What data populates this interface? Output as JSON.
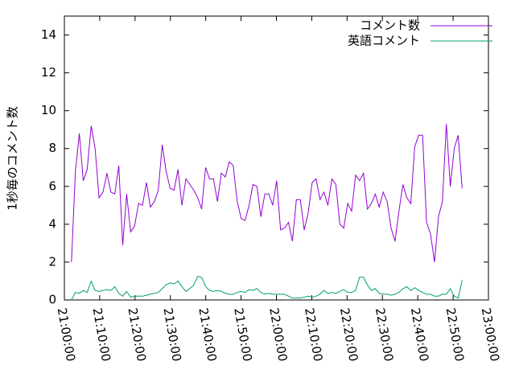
{
  "chart_data": {
    "type": "line",
    "y_label": "1秒毎のコメント数",
    "x": [
      "21:02:00",
      "21:03:07",
      "21:04:14",
      "21:05:21",
      "21:06:28",
      "21:07:35",
      "21:08:42",
      "21:09:49",
      "21:10:56",
      "21:12:03",
      "21:13:10",
      "21:14:17",
      "21:15:24",
      "21:16:31",
      "21:17:38",
      "21:18:45",
      "21:19:52",
      "21:20:59",
      "21:22:06",
      "21:23:13",
      "21:24:20",
      "21:25:27",
      "21:26:34",
      "21:27:41",
      "21:28:48",
      "21:29:55",
      "21:31:02",
      "21:32:09",
      "21:33:16",
      "21:34:23",
      "21:35:30",
      "21:36:37",
      "21:37:44",
      "21:38:51",
      "21:39:58",
      "21:41:05",
      "21:42:12",
      "21:43:19",
      "21:44:26",
      "21:45:33",
      "21:46:40",
      "21:47:47",
      "21:48:54",
      "21:50:01",
      "21:51:08",
      "21:52:15",
      "21:53:22",
      "21:54:29",
      "21:55:36",
      "21:56:43",
      "21:57:50",
      "21:58:57",
      "22:00:04",
      "22:01:11",
      "22:02:18",
      "22:03:25",
      "22:04:32",
      "22:05:39",
      "22:06:46",
      "22:07:53",
      "22:09:00",
      "22:10:07",
      "22:11:14",
      "22:12:21",
      "22:13:28",
      "22:14:35",
      "22:15:42",
      "22:16:49",
      "22:17:56",
      "22:19:03",
      "22:20:10",
      "22:21:17",
      "22:22:24",
      "22:23:31",
      "22:24:38",
      "22:25:45",
      "22:26:52",
      "22:27:59",
      "22:29:06",
      "22:30:13",
      "22:31:20",
      "22:32:27",
      "22:33:34",
      "22:34:41",
      "22:35:48",
      "22:36:55",
      "22:38:02",
      "22:39:09",
      "22:40:16",
      "22:41:23",
      "22:42:30",
      "22:43:37",
      "22:44:44",
      "22:45:51",
      "22:46:58",
      "22:48:05",
      "22:49:12",
      "22:50:19",
      "22:51:26",
      "22:52:33"
    ],
    "series": [
      {
        "name": "コメント数",
        "color": "#9400d3",
        "values": [
          2.0,
          6.8,
          8.8,
          6.3,
          6.9,
          9.2,
          8.0,
          5.4,
          5.7,
          6.7,
          5.7,
          5.6,
          7.1,
          2.9,
          5.6,
          3.6,
          3.9,
          5.1,
          5.0,
          6.2,
          4.9,
          5.2,
          5.8,
          8.2,
          6.8,
          5.9,
          5.8,
          6.9,
          5.0,
          6.4,
          6.1,
          5.8,
          5.4,
          4.8,
          7.0,
          6.4,
          6.4,
          5.2,
          6.7,
          6.5,
          7.3,
          7.1,
          5.2,
          4.3,
          4.2,
          5.0,
          6.1,
          6.0,
          4.4,
          5.6,
          5.6,
          5.0,
          6.3,
          3.7,
          3.8,
          4.1,
          3.1,
          5.3,
          5.3,
          3.7,
          4.6,
          6.2,
          6.4,
          5.3,
          5.7,
          5.0,
          6.4,
          6.1,
          4.0,
          3.8,
          5.1,
          4.7,
          6.6,
          6.3,
          6.7,
          4.8,
          5.1,
          5.6,
          4.9,
          5.7,
          5.2,
          3.8,
          3.1,
          4.7,
          6.1,
          5.4,
          5.1,
          8.1,
          8.7,
          8.7,
          4.1,
          3.5,
          2.0,
          4.4,
          5.2,
          9.3,
          6.0,
          8.0,
          8.7,
          5.9
        ]
      },
      {
        "name": "英語コメント",
        "color": "#009e73",
        "values": [
          0.0,
          0.4,
          0.35,
          0.5,
          0.4,
          1.0,
          0.5,
          0.45,
          0.5,
          0.55,
          0.5,
          0.7,
          0.35,
          0.2,
          0.45,
          0.15,
          0.2,
          0.2,
          0.2,
          0.25,
          0.3,
          0.35,
          0.4,
          0.6,
          0.8,
          0.9,
          0.85,
          1.0,
          0.7,
          0.45,
          0.6,
          0.8,
          1.25,
          1.2,
          0.7,
          0.5,
          0.45,
          0.5,
          0.45,
          0.35,
          0.3,
          0.3,
          0.4,
          0.45,
          0.4,
          0.55,
          0.5,
          0.6,
          0.4,
          0.3,
          0.35,
          0.3,
          0.3,
          0.3,
          0.3,
          0.2,
          0.1,
          0.1,
          0.1,
          0.15,
          0.2,
          0.15,
          0.2,
          0.3,
          0.5,
          0.35,
          0.4,
          0.35,
          0.45,
          0.55,
          0.4,
          0.4,
          0.5,
          1.2,
          1.2,
          0.8,
          0.5,
          0.6,
          0.35,
          0.3,
          0.3,
          0.25,
          0.3,
          0.4,
          0.6,
          0.7,
          0.5,
          0.65,
          0.5,
          0.4,
          0.3,
          0.3,
          0.2,
          0.2,
          0.3,
          0.3,
          0.6,
          0.2,
          0.1,
          1.05
        ]
      }
    ],
    "xlim": [
      "21:00:00",
      "23:00:00"
    ],
    "xticks": [
      "21:00:00",
      "21:10:00",
      "21:20:00",
      "21:30:00",
      "21:40:00",
      "21:50:00",
      "22:00:00",
      "22:10:00",
      "22:20:00",
      "22:30:00",
      "22:40:00",
      "22:50:00",
      "23:00:00"
    ],
    "ylim": [
      0,
      15
    ],
    "yticks": [
      0,
      2,
      4,
      6,
      8,
      10,
      12,
      14
    ],
    "legend": "top-right"
  }
}
